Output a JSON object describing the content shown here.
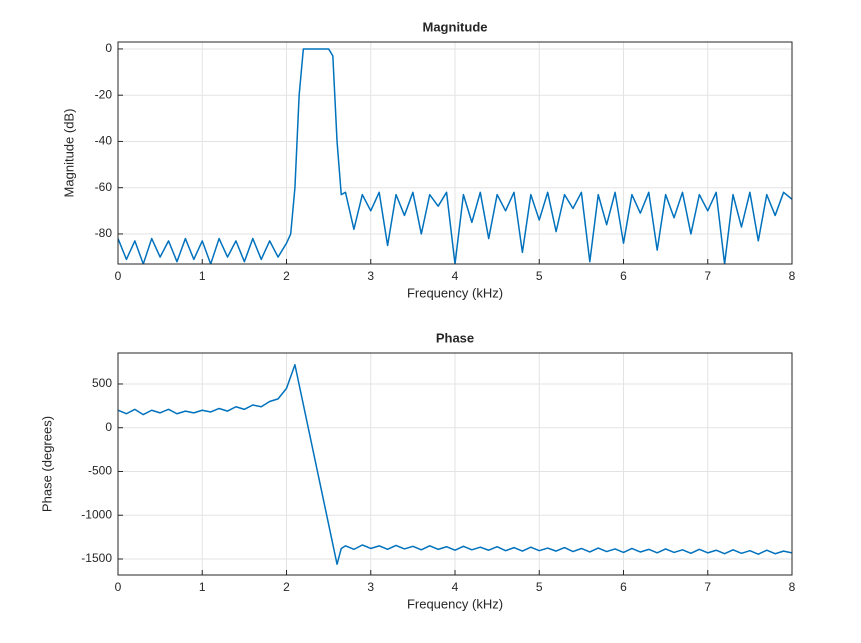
{
  "chart_data": [
    {
      "type": "line",
      "title": "Magnitude",
      "x_label": "Frequency (kHz)",
      "y_label": "Magnitude (dB)",
      "xlim": [
        0,
        8
      ],
      "xticks": [
        0,
        1,
        2,
        3,
        4,
        5,
        6,
        7,
        8
      ],
      "ylim": [
        -93,
        3
      ],
      "yticks": [
        -80,
        -60,
        -40,
        -20,
        0
      ],
      "grid": true,
      "series": [
        {
          "color": "#0072BD",
          "x": [
            0,
            0.1,
            0.2,
            0.3,
            0.4,
            0.5,
            0.6,
            0.7,
            0.8,
            0.9,
            1.0,
            1.1,
            1.2,
            1.3,
            1.4,
            1.5,
            1.6,
            1.7,
            1.8,
            1.9,
            2.0,
            2.05,
            2.1,
            2.15,
            2.2,
            2.3,
            2.4,
            2.5,
            2.55,
            2.6,
            2.65,
            2.7,
            2.8,
            2.9,
            3.0,
            3.1,
            3.2,
            3.3,
            3.4,
            3.5,
            3.6,
            3.7,
            3.8,
            3.9,
            4.0,
            4.1,
            4.2,
            4.3,
            4.4,
            4.5,
            4.6,
            4.7,
            4.8,
            4.9,
            5.0,
            5.1,
            5.2,
            5.3,
            5.4,
            5.5,
            5.6,
            5.7,
            5.8,
            5.9,
            6.0,
            6.1,
            6.2,
            6.3,
            6.4,
            6.5,
            6.6,
            6.7,
            6.8,
            6.9,
            7.0,
            7.1,
            7.2,
            7.3,
            7.4,
            7.5,
            7.6,
            7.7,
            7.8,
            7.9,
            8.0
          ],
          "values": [
            -82,
            -91,
            -83,
            -93,
            -82,
            -90,
            -83,
            -92,
            -82,
            -91,
            -83,
            -93,
            -82,
            -90,
            -83,
            -92,
            -82,
            -91,
            -83,
            -90,
            -84,
            -80,
            -60,
            -20,
            0,
            0,
            0,
            0,
            -3,
            -40,
            -63,
            -62,
            -78,
            -63,
            -70,
            -62,
            -85,
            -63,
            -72,
            -62,
            -80,
            -63,
            -68,
            -62,
            -93,
            -63,
            -75,
            -62,
            -82,
            -63,
            -70,
            -62,
            -88,
            -63,
            -74,
            -62,
            -79,
            -63,
            -69,
            -62,
            -92,
            -63,
            -76,
            -62,
            -84,
            -63,
            -71,
            -62,
            -87,
            -63,
            -73,
            -62,
            -80,
            -63,
            -70,
            -62,
            -93,
            -63,
            -77,
            -62,
            -83,
            -63,
            -72,
            -62,
            -65
          ]
        }
      ]
    },
    {
      "type": "line",
      "title": "Phase",
      "x_label": "Frequency (kHz)",
      "y_label": "Phase (degrees)",
      "xlim": [
        0,
        8
      ],
      "xticks": [
        0,
        1,
        2,
        3,
        4,
        5,
        6,
        7,
        8
      ],
      "ylim": [
        -1683,
        854
      ],
      "yticks": [
        -1500,
        -1000,
        -500,
        0,
        500
      ],
      "grid": true,
      "series": [
        {
          "color": "#0072BD",
          "x": [
            0,
            0.1,
            0.2,
            0.3,
            0.4,
            0.5,
            0.6,
            0.7,
            0.8,
            0.9,
            1.0,
            1.1,
            1.2,
            1.3,
            1.4,
            1.5,
            1.6,
            1.7,
            1.8,
            1.9,
            2.0,
            2.1,
            2.6,
            2.65,
            2.7,
            2.8,
            2.9,
            3.0,
            3.1,
            3.2,
            3.3,
            3.4,
            3.5,
            3.6,
            3.7,
            3.8,
            3.9,
            4.0,
            4.1,
            4.2,
            4.3,
            4.4,
            4.5,
            4.6,
            4.7,
            4.8,
            4.9,
            5.0,
            5.1,
            5.2,
            5.3,
            5.4,
            5.5,
            5.6,
            5.7,
            5.8,
            5.9,
            6.0,
            6.1,
            6.2,
            6.3,
            6.4,
            6.5,
            6.6,
            6.7,
            6.8,
            6.9,
            7.0,
            7.1,
            7.2,
            7.3,
            7.4,
            7.5,
            7.6,
            7.7,
            7.8,
            7.9,
            8.0
          ],
          "values": [
            200,
            160,
            210,
            150,
            200,
            170,
            210,
            160,
            190,
            170,
            200,
            180,
            220,
            190,
            240,
            210,
            260,
            240,
            300,
            330,
            450,
            720,
            -1560,
            -1380,
            -1350,
            -1390,
            -1340,
            -1380,
            -1350,
            -1390,
            -1345,
            -1385,
            -1355,
            -1395,
            -1350,
            -1390,
            -1360,
            -1400,
            -1355,
            -1395,
            -1365,
            -1400,
            -1360,
            -1405,
            -1370,
            -1410,
            -1365,
            -1405,
            -1375,
            -1410,
            -1370,
            -1415,
            -1380,
            -1420,
            -1375,
            -1415,
            -1385,
            -1425,
            -1380,
            -1420,
            -1390,
            -1430,
            -1385,
            -1425,
            -1395,
            -1435,
            -1390,
            -1430,
            -1400,
            -1440,
            -1395,
            -1435,
            -1405,
            -1445,
            -1400,
            -1440,
            -1410,
            -1430
          ]
        }
      ]
    }
  ]
}
